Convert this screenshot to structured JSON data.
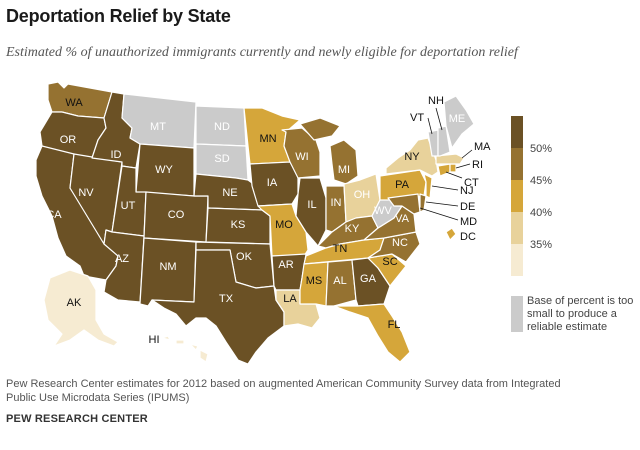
{
  "title": "Deportation Relief by State",
  "subtitle": "Estimated % of unauthorized immigrants currently and newly eligible for deportation relief",
  "colors": {
    "c50": "#6b5125",
    "c45": "#957231",
    "c40": "#d5a63a",
    "c35": "#e8d29b",
    "c30": "#f6ebd2",
    "na": "#cbcbcb",
    "border": "#ffffff"
  },
  "legend": {
    "ticks": [
      "50%",
      "45%",
      "40%",
      "35%"
    ],
    "na_label": "Base of percent is too small to produce a reliable estimate"
  },
  "states": [
    {
      "abbr": "WA",
      "bin": "45"
    },
    {
      "abbr": "OR",
      "bin": "50"
    },
    {
      "abbr": "CA",
      "bin": "50"
    },
    {
      "abbr": "NV",
      "bin": "50"
    },
    {
      "abbr": "ID",
      "bin": "50"
    },
    {
      "abbr": "MT",
      "bin": "na"
    },
    {
      "abbr": "WY",
      "bin": "50"
    },
    {
      "abbr": "UT",
      "bin": "50"
    },
    {
      "abbr": "AZ",
      "bin": "50"
    },
    {
      "abbr": "CO",
      "bin": "50"
    },
    {
      "abbr": "NM",
      "bin": "50"
    },
    {
      "abbr": "ND",
      "bin": "na"
    },
    {
      "abbr": "SD",
      "bin": "na"
    },
    {
      "abbr": "NE",
      "bin": "50"
    },
    {
      "abbr": "KS",
      "bin": "50"
    },
    {
      "abbr": "OK",
      "bin": "50"
    },
    {
      "abbr": "TX",
      "bin": "50"
    },
    {
      "abbr": "MN",
      "bin": "40"
    },
    {
      "abbr": "IA",
      "bin": "50"
    },
    {
      "abbr": "MO",
      "bin": "40"
    },
    {
      "abbr": "AR",
      "bin": "50"
    },
    {
      "abbr": "LA",
      "bin": "35"
    },
    {
      "abbr": "WI",
      "bin": "45"
    },
    {
      "abbr": "IL",
      "bin": "50"
    },
    {
      "abbr": "MI",
      "bin": "45"
    },
    {
      "abbr": "IN",
      "bin": "45"
    },
    {
      "abbr": "OH",
      "bin": "35"
    },
    {
      "abbr": "KY",
      "bin": "45"
    },
    {
      "abbr": "TN",
      "bin": "40"
    },
    {
      "abbr": "MS",
      "bin": "40"
    },
    {
      "abbr": "AL",
      "bin": "45"
    },
    {
      "abbr": "GA",
      "bin": "50"
    },
    {
      "abbr": "FL",
      "bin": "40"
    },
    {
      "abbr": "SC",
      "bin": "40"
    },
    {
      "abbr": "NC",
      "bin": "45"
    },
    {
      "abbr": "VA",
      "bin": "45"
    },
    {
      "abbr": "WV",
      "bin": "na"
    },
    {
      "abbr": "PA",
      "bin": "40"
    },
    {
      "abbr": "NY",
      "bin": "35"
    },
    {
      "abbr": "VT",
      "bin": "na"
    },
    {
      "abbr": "NH",
      "bin": "na"
    },
    {
      "abbr": "ME",
      "bin": "na"
    },
    {
      "abbr": "MA",
      "bin": "35"
    },
    {
      "abbr": "RI",
      "bin": "40"
    },
    {
      "abbr": "CT",
      "bin": "40"
    },
    {
      "abbr": "NJ",
      "bin": "40"
    },
    {
      "abbr": "DE",
      "bin": "45"
    },
    {
      "abbr": "MD",
      "bin": "45"
    },
    {
      "abbr": "DC",
      "bin": "40"
    },
    {
      "abbr": "AK",
      "bin": "30"
    },
    {
      "abbr": "HI",
      "bin": "30"
    }
  ],
  "source": "Pew Research Center estimates for 2012 based on augmented American Community Survey data from Integrated Public Use Microdata Series (IPUMS)",
  "credit": "PEW RESEARCH CENTER"
}
